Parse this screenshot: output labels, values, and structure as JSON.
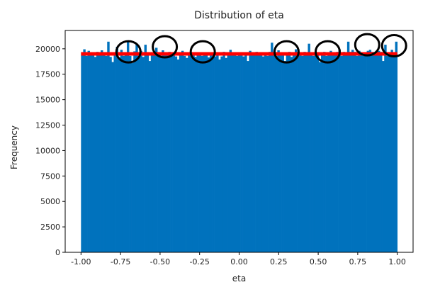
{
  "chart_data": {
    "type": "bar",
    "title": "Distribution of eta",
    "xlabel": "eta",
    "ylabel": "Frequency",
    "xlim": [
      -1.1,
      1.1
    ],
    "ylim": [
      0,
      21800
    ],
    "x_ticks": [
      "-1.00",
      "-0.75",
      "-0.50",
      "-0.25",
      "0.00",
      "0.25",
      "0.50",
      "0.75",
      "1.00"
    ],
    "x_tick_values": [
      -1.0,
      -0.75,
      -0.5,
      -0.25,
      0.0,
      0.25,
      0.5,
      0.75,
      1.0
    ],
    "y_ticks": [
      "0",
      "2500",
      "5000",
      "7500",
      "10000",
      "12500",
      "15000",
      "17500",
      "20000"
    ],
    "y_tick_values": [
      0,
      2500,
      5000,
      7500,
      10000,
      12500,
      15000,
      17500,
      20000
    ],
    "bin_range": [
      -1.0,
      1.0
    ],
    "values": [
      19400,
      19950,
      19300,
      19800,
      19350,
      19500,
      19200,
      19700,
      19450,
      19850,
      19550,
      19300,
      20700,
      19200,
      18700,
      19600,
      20200,
      19150,
      19900,
      19300,
      19500,
      20700,
      19300,
      18600,
      19750,
      20400,
      19300,
      19800,
      19200,
      20400,
      19600,
      18800,
      19350,
      19750,
      20100,
      19500,
      19150,
      19850,
      19600,
      19400,
      19700,
      19300,
      19650,
      19250,
      18950,
      19500,
      19800,
      19300,
      19100,
      19550,
      19300,
      19650,
      19200,
      19600,
      19400,
      19300,
      19500,
      19350,
      19150,
      19600,
      19450,
      19250,
      19400,
      18950,
      19250,
      19700,
      19100,
      19600,
      19900,
      19400,
      19550,
      19300,
      19650,
      19450,
      19250,
      19400,
      18800,
      19800,
      19400,
      19550,
      19700,
      19650,
      19500,
      19250,
      19500,
      19300,
      19700,
      20600,
      19500,
      19300,
      19850,
      19400,
      19600,
      18800,
      19500,
      19700,
      19200,
      19600,
      19950,
      19700,
      19500,
      19300,
      19700,
      19600,
      20500,
      19400,
      19300,
      19550,
      19650,
      18700,
      19500,
      19700,
      19300,
      19600,
      19800,
      19450,
      19500,
      19700,
      19900,
      19300,
      19700,
      19500,
      20700,
      19700,
      19900,
      19700,
      19300,
      19800,
      19600,
      19300,
      19500,
      19800,
      19900,
      19700,
      19400,
      19600,
      19800,
      19700,
      18800,
      20400,
      19300,
      19500,
      19900,
      19200,
      20700
    ],
    "bar_color": "#0072bd",
    "reference_line": {
      "y": 19500,
      "x_range": [
        -1.0,
        1.0
      ],
      "color": "#ff0000"
    },
    "annotations": [
      {
        "type": "circle",
        "x": -0.7,
        "y": 19700
      },
      {
        "type": "circle",
        "x": -0.47,
        "y": 20200
      },
      {
        "type": "circle",
        "x": -0.23,
        "y": 19700
      },
      {
        "type": "circle",
        "x": 0.3,
        "y": 19700
      },
      {
        "type": "circle",
        "x": 0.56,
        "y": 19700
      },
      {
        "type": "circle",
        "x": 0.81,
        "y": 20400
      },
      {
        "type": "circle",
        "x": 0.98,
        "y": 20300
      }
    ],
    "grid": false,
    "legend": "none"
  }
}
